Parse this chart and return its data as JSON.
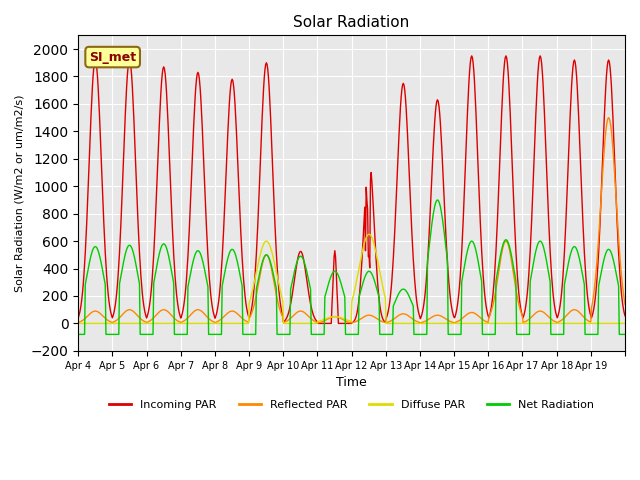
{
  "title": "Solar Radiation",
  "xlabel": "Time",
  "ylabel": "Solar Radiation (W/m2 or um/m2/s)",
  "ylim": [
    -200,
    2100
  ],
  "yticks": [
    -200,
    0,
    200,
    400,
    600,
    800,
    1000,
    1200,
    1400,
    1600,
    1800,
    2000
  ],
  "date_labels": [
    "Apr 4",
    "Apr 5",
    "Apr 6",
    "Apr 7",
    "Apr 8",
    "Apr 9",
    "Apr 10",
    "Apr 11",
    "Apr 12",
    "Apr 13",
    "Apr 14",
    "Apr 15",
    "Apr 16",
    "Apr 17",
    "Apr 18",
    "Apr 19"
  ],
  "annotation_text": "SI_met",
  "annotation_bbox": {
    "boxstyle": "round",
    "facecolor": "#FFFF99",
    "edgecolor": "#996600"
  },
  "series": {
    "incoming_par": {
      "color": "#DD0000",
      "label": "Incoming PAR",
      "lw": 1.2
    },
    "reflected_par": {
      "color": "#FF8800",
      "label": "Reflected PAR",
      "lw": 1.2
    },
    "diffuse_par": {
      "color": "#DDDD00",
      "label": "Diffuse PAR",
      "lw": 1.2
    },
    "net_radiation": {
      "color": "#00CC00",
      "label": "Net Radiation",
      "lw": 1.2
    }
  },
  "background_color": "#E8E8E8",
  "grid_color": "#FFFFFF",
  "n_points_per_day": 48,
  "n_days": 16,
  "day_peaks_incoming": [
    1920,
    1920,
    1870,
    1830,
    1780,
    1900,
    1750,
    530,
    1200,
    1750,
    1630,
    1950,
    1950,
    1950,
    1920,
    1920
  ],
  "day_peaks_reflected": [
    90,
    100,
    100,
    100,
    90,
    500,
    90,
    50,
    60,
    70,
    60,
    80,
    600,
    90,
    100,
    1500
  ],
  "day_peaks_diffuse": [
    0,
    0,
    0,
    0,
    0,
    600,
    0,
    50,
    650,
    0,
    0,
    0,
    0,
    0,
    0,
    0
  ],
  "day_peaks_net": [
    560,
    570,
    580,
    530,
    540,
    500,
    490,
    380,
    380,
    250,
    900,
    600,
    610,
    600,
    560,
    540
  ],
  "night_net": -80
}
